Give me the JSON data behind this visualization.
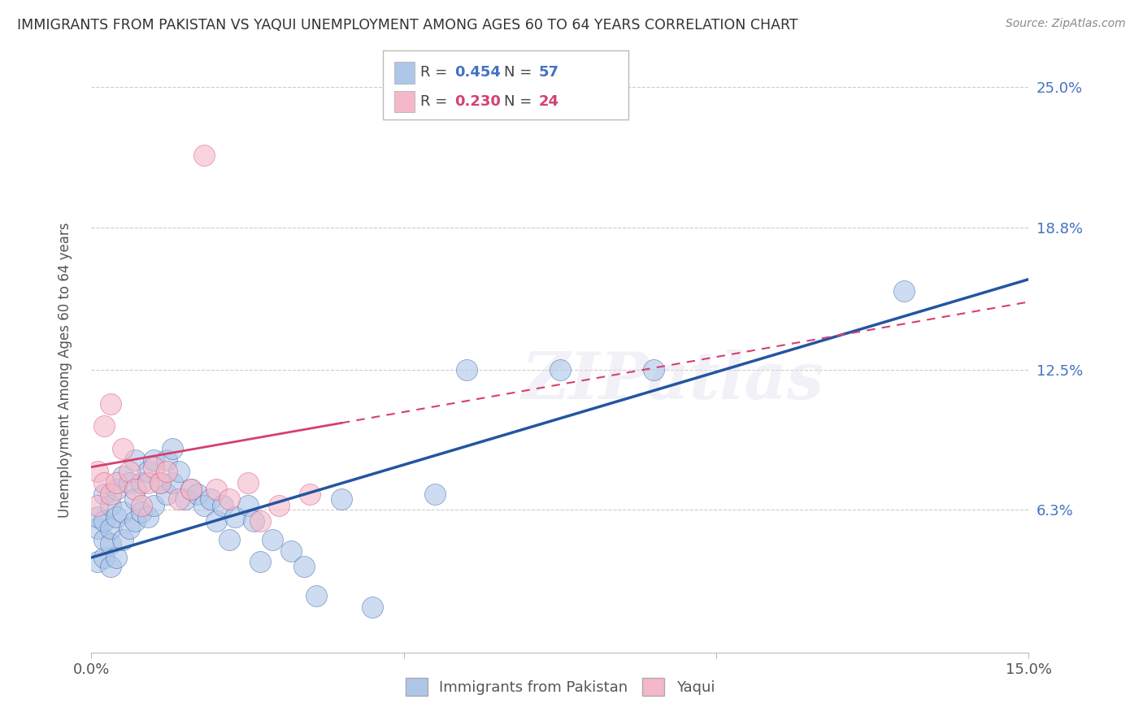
{
  "title": "IMMIGRANTS FROM PAKISTAN VS YAQUI UNEMPLOYMENT AMONG AGES 60 TO 64 YEARS CORRELATION CHART",
  "source": "Source: ZipAtlas.com",
  "ylabel": "Unemployment Among Ages 60 to 64 years",
  "xlim": [
    0.0,
    0.15
  ],
  "ylim": [
    0.0,
    0.25
  ],
  "right_ytick_positions": [
    0.063,
    0.125,
    0.188,
    0.25
  ],
  "right_ytick_labels": [
    "6.3%",
    "12.5%",
    "18.8%",
    "25.0%"
  ],
  "blue_color": "#aec6e8",
  "pink_color": "#f4b8c8",
  "blue_line_color": "#2555a0",
  "pink_line_color": "#d44070",
  "legend_label1": "Immigrants from Pakistan",
  "legend_label2": "Yaqui",
  "watermark": "ZIPatlas",
  "grid_color": "#cccccc",
  "background_color": "#ffffff",
  "blue_scatter_x": [
    0.001,
    0.001,
    0.001,
    0.002,
    0.002,
    0.002,
    0.002,
    0.003,
    0.003,
    0.003,
    0.003,
    0.004,
    0.004,
    0.004,
    0.005,
    0.005,
    0.005,
    0.006,
    0.006,
    0.007,
    0.007,
    0.007,
    0.008,
    0.008,
    0.009,
    0.009,
    0.01,
    0.01,
    0.011,
    0.012,
    0.012,
    0.013,
    0.013,
    0.014,
    0.015,
    0.016,
    0.017,
    0.018,
    0.019,
    0.02,
    0.021,
    0.022,
    0.023,
    0.025,
    0.026,
    0.027,
    0.029,
    0.032,
    0.034,
    0.036,
    0.04,
    0.045,
    0.055,
    0.06,
    0.075,
    0.09,
    0.13
  ],
  "blue_scatter_y": [
    0.04,
    0.055,
    0.06,
    0.042,
    0.05,
    0.058,
    0.07,
    0.038,
    0.048,
    0.055,
    0.065,
    0.042,
    0.06,
    0.072,
    0.05,
    0.062,
    0.078,
    0.055,
    0.075,
    0.058,
    0.068,
    0.085,
    0.062,
    0.075,
    0.06,
    0.08,
    0.065,
    0.085,
    0.075,
    0.07,
    0.085,
    0.075,
    0.09,
    0.08,
    0.068,
    0.072,
    0.07,
    0.065,
    0.068,
    0.058,
    0.065,
    0.05,
    0.06,
    0.065,
    0.058,
    0.04,
    0.05,
    0.045,
    0.038,
    0.025,
    0.068,
    0.02,
    0.07,
    0.125,
    0.125,
    0.125,
    0.16
  ],
  "pink_scatter_x": [
    0.001,
    0.001,
    0.002,
    0.002,
    0.003,
    0.003,
    0.004,
    0.005,
    0.006,
    0.007,
    0.008,
    0.009,
    0.01,
    0.011,
    0.012,
    0.014,
    0.016,
    0.018,
    0.02,
    0.022,
    0.025,
    0.027,
    0.03,
    0.035
  ],
  "pink_scatter_y": [
    0.065,
    0.08,
    0.075,
    0.1,
    0.07,
    0.11,
    0.075,
    0.09,
    0.08,
    0.072,
    0.065,
    0.075,
    0.082,
    0.075,
    0.08,
    0.068,
    0.072,
    0.22,
    0.072,
    0.068,
    0.075,
    0.058,
    0.065,
    0.07
  ],
  "blue_line_x0": 0.0,
  "blue_line_y0": 0.042,
  "blue_line_x1": 0.15,
  "blue_line_y1": 0.165,
  "pink_line_x0": 0.0,
  "pink_line_y0": 0.082,
  "pink_line_x1": 0.15,
  "pink_line_y1": 0.155
}
